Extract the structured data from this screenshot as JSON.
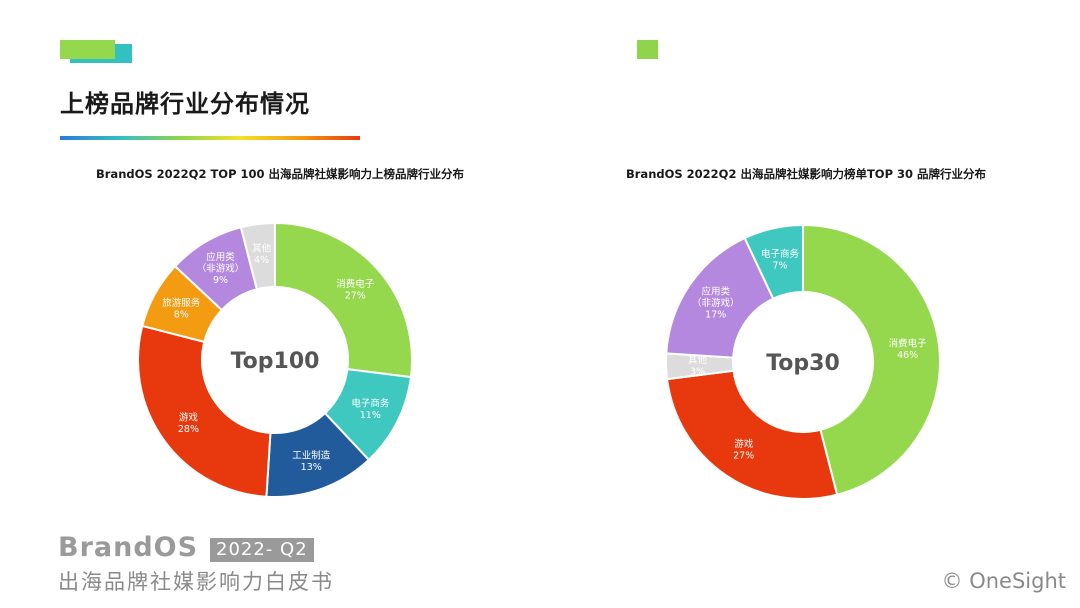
{
  "page": {
    "title": "上榜品牌行业分布情况",
    "footer_brand": "BrandOS",
    "footer_badge": "2022- Q2",
    "footer_sub": "出海品牌社媒影响力白皮书",
    "copyright": "© OneSight"
  },
  "colors": {
    "accent_green": "#8fd44b",
    "accent_teal": "#33c0c0"
  },
  "chart_data": [
    {
      "type": "pie",
      "style": "donut",
      "title": "BrandOS 2022Q2 TOP 100 出海品牌社媒影响力上榜品牌行业分布",
      "center_label": "Top100",
      "slices": [
        {
          "name": "消费电子",
          "value": 27,
          "label": "27%",
          "color": "#95d84e"
        },
        {
          "name": "电子商务",
          "value": 11,
          "label": "11%",
          "color": "#3fc8c0"
        },
        {
          "name": "工业制造",
          "value": 13,
          "label": "13%",
          "color": "#215b9c"
        },
        {
          "name": "游戏",
          "value": 28,
          "label": "28%",
          "color": "#e8390e"
        },
        {
          "name": "旅游服务",
          "value": 8,
          "label": "8%",
          "color": "#f39c12"
        },
        {
          "name": "应用类",
          "sub": "（非游戏）",
          "value": 9,
          "label": "9%",
          "color": "#b488df"
        },
        {
          "name": "其他",
          "value": 4,
          "label": "4%",
          "color": "#dcdcdc"
        }
      ]
    },
    {
      "type": "pie",
      "style": "donut",
      "title": "BrandOS 2022Q2 出海品牌社媒影响力榜单TOP 30 品牌行业分布",
      "center_label": "Top30",
      "slices": [
        {
          "name": "消费电子",
          "value": 46,
          "label": "46%",
          "color": "#95d84e"
        },
        {
          "name": "游戏",
          "value": 27,
          "label": "27%",
          "color": "#e8390e"
        },
        {
          "name": "其他",
          "value": 3,
          "label": "3%",
          "color": "#dcdcdc"
        },
        {
          "name": "应用类",
          "sub": "（非游戏）",
          "value": 17,
          "label": "17%",
          "color": "#b488df"
        },
        {
          "name": "电子商务",
          "value": 7,
          "label": "7%",
          "color": "#3fc8c0"
        }
      ]
    }
  ]
}
